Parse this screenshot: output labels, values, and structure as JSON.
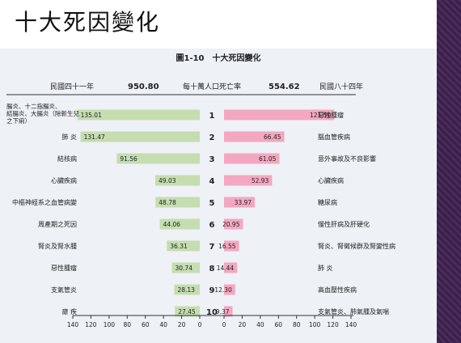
{
  "slide": {
    "title": "十大死因變化"
  },
  "chart_data": {
    "type": "bar",
    "title": "圖1-10　十大死因變化",
    "left_header": {
      "year": "民國四十一年",
      "rate": "950.80"
    },
    "center_header": "每十萬人口死亡率",
    "right_header": {
      "rate": "554.62",
      "year": "民國八十四年"
    },
    "left_color": "#c5ddb0",
    "right_color": "#f4a7c0",
    "ranks": [
      "1",
      "2",
      "3",
      "4",
      "5",
      "6",
      "7",
      "8",
      "9",
      "10"
    ],
    "left_labels": [
      "腸炎、十二指腸炎、結腸炎、大腸炎（除新生兒之下痢）",
      "肺 炎",
      "結核病",
      "心臟疾病",
      "中樞神經系之血管病變",
      "周產期之死因",
      "腎炎及腎水腫",
      "惡性腫瘤",
      "支氣管炎",
      "瘧 疾"
    ],
    "left_values": [
      135.01,
      131.47,
      91.56,
      49.03,
      48.78,
      44.06,
      36.31,
      30.74,
      28.13,
      27.45
    ],
    "right_labels": [
      "惡性腫瘤",
      "腦血管疾病",
      "意外事故及不良影響",
      "心臟疾病",
      "糖尿病",
      "慢性肝病及肝硬化",
      "腎炎、腎徵候群及腎變性病",
      "肺 炎",
      "高血壓性疾病",
      "支氣管炎、肺氣腫及氣喘"
    ],
    "right_values": [
      121.5,
      66.45,
      61.05,
      52.93,
      33.97,
      20.95,
      16.55,
      14.44,
      12.3,
      9.37
    ],
    "axis_ticks_left": [
      "140",
      "120",
      "100",
      "80",
      "60",
      "40",
      "20",
      "0"
    ],
    "axis_ticks_right": [
      "0",
      "20",
      "40",
      "60",
      "80",
      "100",
      "120",
      "140"
    ],
    "xlim": [
      0,
      140
    ]
  }
}
